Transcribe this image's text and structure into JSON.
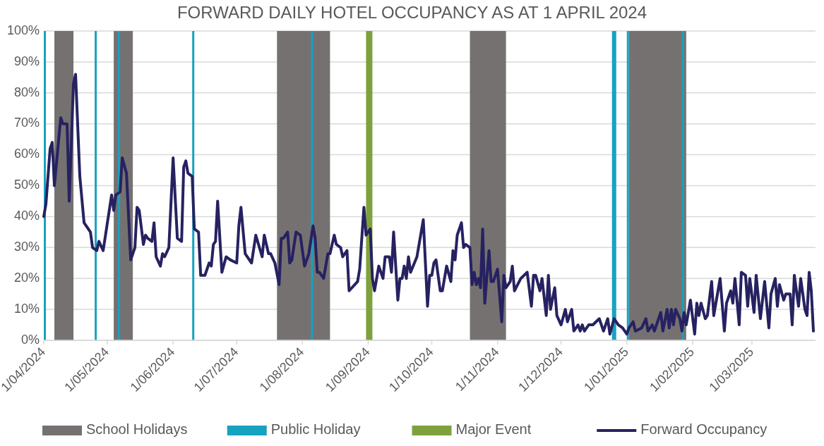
{
  "chart_data": {
    "type": "line",
    "title": "FORWARD DAILY HOTEL OCCUPANCY AS AT 1 APRIL 2024",
    "xlim": [
      "2024-04-01",
      "2025-03-31"
    ],
    "xticks": [
      {
        "value": "2024-04-01",
        "label": "1/04/2024"
      },
      {
        "value": "2024-05-01",
        "label": "1/05/2024"
      },
      {
        "value": "2024-06-01",
        "label": "1/06/2024"
      },
      {
        "value": "2024-07-01",
        "label": "1/07/2024"
      },
      {
        "value": "2024-08-01",
        "label": "1/08/2024"
      },
      {
        "value": "2024-09-01",
        "label": "1/09/2024"
      },
      {
        "value": "2024-10-01",
        "label": "1/10/2024"
      },
      {
        "value": "2024-11-01",
        "label": "1/11/2024"
      },
      {
        "value": "2024-12-01",
        "label": "1/12/2024"
      },
      {
        "value": "2025-01-01",
        "label": "1/01/2025"
      },
      {
        "value": "2025-02-01",
        "label": "1/02/2025"
      },
      {
        "value": "2025-03-01",
        "label": "1/03/2025"
      }
    ],
    "ylim": [
      0,
      100
    ],
    "yticks": [
      {
        "value": 0,
        "label": "0%"
      },
      {
        "value": 10,
        "label": "10%"
      },
      {
        "value": 20,
        "label": "20%"
      },
      {
        "value": 30,
        "label": "30%"
      },
      {
        "value": 40,
        "label": "40%"
      },
      {
        "value": 50,
        "label": "50%"
      },
      {
        "value": 60,
        "label": "60%"
      },
      {
        "value": 70,
        "label": "70%"
      },
      {
        "value": 80,
        "label": "80%"
      },
      {
        "value": 90,
        "label": "90%"
      },
      {
        "value": 100,
        "label": "100%"
      }
    ],
    "grid": "y",
    "legend": "bottom",
    "line_style": "solid",
    "marker": "none",
    "bands": [
      {
        "axis": "x",
        "from": "2024-04-06",
        "to": "2024-04-15",
        "label": "School Holidays",
        "color": "#767171"
      },
      {
        "axis": "x",
        "from": "2024-05-04",
        "to": "2024-05-13",
        "color": "#767171"
      },
      {
        "axis": "x",
        "from": "2024-07-20",
        "to": "2024-08-14",
        "color": "#767171"
      },
      {
        "axis": "x",
        "from": "2024-10-19",
        "to": "2024-11-05",
        "color": "#767171"
      },
      {
        "axis": "x",
        "from": "2025-01-02",
        "to": "2025-01-29",
        "color": "#767171"
      },
      {
        "axis": "x",
        "from": "2024-04-01",
        "to": "2024-04-02",
        "label": "Public Holiday",
        "color": "#17a2c0"
      },
      {
        "axis": "x",
        "from": "2024-04-25",
        "to": "2024-04-26",
        "color": "#17a2c0"
      },
      {
        "axis": "x",
        "from": "2024-05-06",
        "to": "2024-05-07",
        "color": "#17a2c0"
      },
      {
        "axis": "x",
        "from": "2024-06-10",
        "to": "2024-06-11",
        "color": "#17a2c0"
      },
      {
        "axis": "x",
        "from": "2024-08-05",
        "to": "2024-08-06",
        "color": "#17a2c0"
      },
      {
        "axis": "x",
        "from": "2024-12-25",
        "to": "2024-12-27",
        "color": "#17a2c0"
      },
      {
        "axis": "x",
        "from": "2025-01-01",
        "to": "2025-01-02",
        "color": "#17a2c0"
      },
      {
        "axis": "x",
        "from": "2025-01-27",
        "to": "2025-01-28",
        "color": "#17a2c0"
      },
      {
        "axis": "x",
        "from": "2024-08-31",
        "to": "2024-09-03",
        "label": "Major Event",
        "color": "#7ea13e"
      }
    ],
    "series": [
      {
        "name": "Forward Occupancy",
        "color": "#262261",
        "x": [
          "2024-04-01",
          "2024-04-02",
          "2024-04-04",
          "2024-04-05",
          "2024-04-06",
          "2024-04-09",
          "2024-04-10",
          "2024-04-12",
          "2024-04-13",
          "2024-04-15",
          "2024-04-16",
          "2024-04-18",
          "2024-04-20",
          "2024-04-22",
          "2024-04-23",
          "2024-04-24",
          "2024-04-26",
          "2024-04-27",
          "2024-04-29",
          "2024-05-03",
          "2024-05-04",
          "2024-05-05",
          "2024-05-07",
          "2024-05-08",
          "2024-05-10",
          "2024-05-12",
          "2024-05-14",
          "2024-05-15",
          "2024-05-16",
          "2024-05-18",
          "2024-05-19",
          "2024-05-20",
          "2024-05-22",
          "2024-05-23",
          "2024-05-24",
          "2024-05-26",
          "2024-05-27",
          "2024-05-28",
          "2024-05-30",
          "2024-06-01",
          "2024-06-03",
          "2024-06-05",
          "2024-06-06",
          "2024-06-07",
          "2024-06-08",
          "2024-06-10",
          "2024-06-11",
          "2024-06-13",
          "2024-06-14",
          "2024-06-16",
          "2024-06-18",
          "2024-06-19",
          "2024-06-20",
          "2024-06-21",
          "2024-06-22",
          "2024-06-24",
          "2024-06-26",
          "2024-06-28",
          "2024-07-01",
          "2024-07-02",
          "2024-07-03",
          "2024-07-05",
          "2024-07-08",
          "2024-07-10",
          "2024-07-13",
          "2024-07-14",
          "2024-07-16",
          "2024-07-17",
          "2024-07-19",
          "2024-07-21",
          "2024-07-22",
          "2024-07-23",
          "2024-07-25",
          "2024-07-26",
          "2024-07-27",
          "2024-07-29",
          "2024-07-31",
          "2024-08-02",
          "2024-08-04",
          "2024-08-06",
          "2024-08-07",
          "2024-08-08",
          "2024-08-09",
          "2024-08-11",
          "2024-08-13",
          "2024-08-14",
          "2024-08-16",
          "2024-08-17",
          "2024-08-19",
          "2024-08-20",
          "2024-08-22",
          "2024-08-23",
          "2024-08-27",
          "2024-08-28",
          "2024-08-30",
          "2024-08-31",
          "2024-09-02",
          "2024-09-03",
          "2024-09-04",
          "2024-09-06",
          "2024-09-08",
          "2024-09-09",
          "2024-09-11",
          "2024-09-12",
          "2024-09-13",
          "2024-09-15",
          "2024-09-16",
          "2024-09-17",
          "2024-09-18",
          "2024-09-19",
          "2024-09-20",
          "2024-09-21",
          "2024-09-24",
          "2024-09-27",
          "2024-09-29",
          "2024-09-30",
          "2024-10-01",
          "2024-10-02",
          "2024-10-03",
          "2024-10-05",
          "2024-10-06",
          "2024-10-08",
          "2024-10-10",
          "2024-10-11",
          "2024-10-12",
          "2024-10-13",
          "2024-10-15",
          "2024-10-16",
          "2024-10-17",
          "2024-10-19",
          "2024-10-20",
          "2024-10-21",
          "2024-10-22",
          "2024-10-23",
          "2024-10-24",
          "2024-10-25",
          "2024-10-26",
          "2024-10-28",
          "2024-10-29",
          "2024-10-30",
          "2024-11-01",
          "2024-11-03",
          "2024-11-04",
          "2024-11-05",
          "2024-11-07",
          "2024-11-08",
          "2024-11-09",
          "2024-11-12",
          "2024-11-15",
          "2024-11-17",
          "2024-11-18",
          "2024-11-19",
          "2024-11-21",
          "2024-11-22",
          "2024-11-24",
          "2024-11-25",
          "2024-11-26",
          "2024-11-28",
          "2024-11-29",
          "2024-12-01",
          "2024-12-03",
          "2024-12-04",
          "2024-12-06",
          "2024-12-07",
          "2024-12-09",
          "2024-12-10",
          "2024-12-11",
          "2024-12-12",
          "2024-12-14",
          "2024-12-16",
          "2024-12-19",
          "2024-12-21",
          "2024-12-23",
          "2024-12-24",
          "2024-12-26",
          "2024-12-28",
          "2024-12-30",
          "2025-01-01",
          "2025-01-02",
          "2025-01-04",
          "2025-01-05",
          "2025-01-08",
          "2025-01-10",
          "2025-01-11",
          "2025-01-13",
          "2025-01-14",
          "2025-01-17",
          "2025-01-18",
          "2025-01-20",
          "2025-01-21",
          "2025-01-22",
          "2025-01-23",
          "2025-01-24",
          "2025-01-26",
          "2025-01-27",
          "2025-01-28",
          "2025-01-29",
          "2025-01-31",
          "2025-02-02",
          "2025-02-03",
          "2025-02-04",
          "2025-02-05",
          "2025-02-07",
          "2025-02-08",
          "2025-02-10",
          "2025-02-11",
          "2025-02-14",
          "2025-02-16",
          "2025-02-17",
          "2025-02-19",
          "2025-02-20",
          "2025-02-21",
          "2025-02-23",
          "2025-02-24",
          "2025-02-26",
          "2025-02-27",
          "2025-02-28",
          "2025-03-02",
          "2025-03-03",
          "2025-03-05",
          "2025-03-07",
          "2025-03-09",
          "2025-03-10",
          "2025-03-12",
          "2025-03-13",
          "2025-03-14",
          "2025-03-16",
          "2025-03-17",
          "2025-03-19",
          "2025-03-20",
          "2025-03-21",
          "2025-03-23",
          "2025-03-24",
          "2025-03-26",
          "2025-03-27",
          "2025-03-28",
          "2025-03-29",
          "2025-03-30"
        ],
        "values": [
          40,
          44,
          62,
          64,
          50,
          72,
          70,
          70,
          45,
          83,
          86,
          53,
          38,
          36,
          35,
          30,
          29,
          32,
          29,
          47,
          42,
          47,
          48,
          59,
          54,
          26,
          30,
          43,
          42,
          31,
          34,
          33,
          32,
          38,
          27,
          24,
          28,
          27,
          30,
          59,
          33,
          32,
          56,
          58,
          54,
          53,
          36,
          35,
          21,
          21,
          25,
          24,
          31,
          32,
          45,
          22,
          27,
          26,
          25,
          37,
          43,
          28,
          25,
          34,
          27,
          34,
          28,
          28,
          25,
          18,
          33,
          33,
          35,
          25,
          26,
          35,
          34,
          24,
          28,
          37,
          33,
          22,
          22,
          20,
          28,
          28,
          34,
          31,
          30,
          27,
          29,
          16,
          19,
          23,
          43,
          34,
          36,
          20,
          16,
          24,
          20,
          27,
          27,
          22,
          35,
          13,
          20,
          20,
          24,
          20,
          27,
          22,
          27,
          39,
          11,
          21,
          21,
          25,
          26,
          16,
          16,
          24,
          19,
          29,
          26,
          34,
          38,
          30,
          31,
          30,
          18,
          22,
          18,
          20,
          17,
          36,
          12,
          29,
          19,
          19,
          23,
          6,
          21,
          17,
          19,
          24,
          16,
          20,
          22,
          11,
          21,
          21,
          16,
          20,
          8,
          21,
          10,
          17,
          8,
          5,
          10,
          6,
          10,
          3,
          5,
          3,
          5,
          3,
          5,
          5,
          7,
          3,
          7,
          2,
          7,
          5,
          4,
          2,
          4,
          6,
          3,
          4,
          7,
          3,
          5,
          3,
          9,
          3,
          10,
          4,
          10,
          5,
          10,
          7,
          3,
          9,
          5,
          13,
          2,
          12,
          8,
          12,
          7,
          8,
          19,
          8,
          20,
          3,
          12,
          16,
          12,
          20,
          5,
          22,
          21,
          11,
          20,
          9,
          21,
          7,
          19,
          4,
          15,
          20,
          11,
          18,
          13,
          15,
          15,
          5,
          21,
          11,
          20,
          10,
          8,
          22,
          16,
          3
        ]
      }
    ]
  }
}
